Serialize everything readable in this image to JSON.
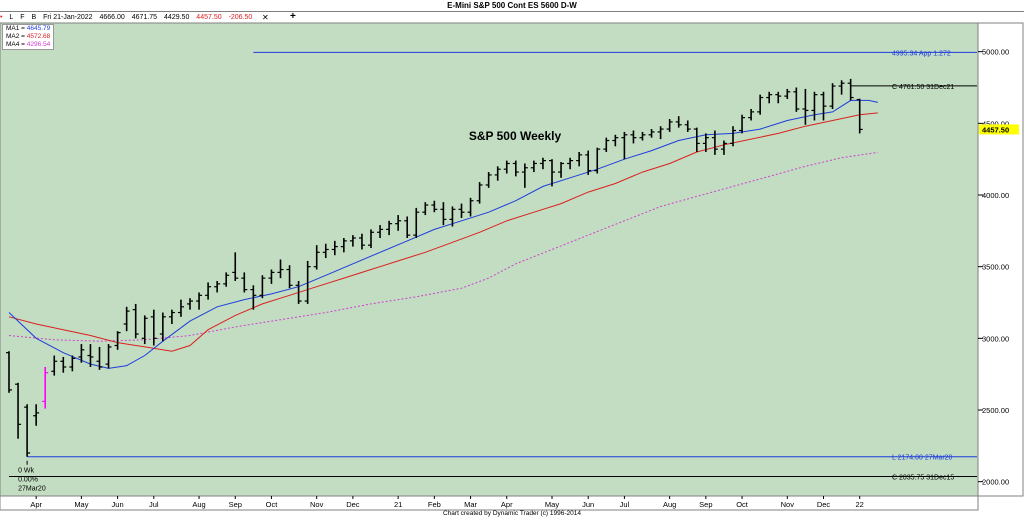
{
  "window": {
    "title": "E-Mini S&P 500 Cont ES 5600 D-W",
    "footer": "Chart created by Dynamic Trader  (c) 1996-2014",
    "crosshair_symbol": "+",
    "close_symbol": "✕"
  },
  "info_bar": {
    "toolbar_glyphs": [
      "•",
      "L",
      "F",
      "B"
    ],
    "date": "Fri 21-Jan-2022",
    "open": "4666.00",
    "high": "4671.75",
    "low": "4429.50",
    "close": "4457.50",
    "change": "-206.50"
  },
  "moving_averages": [
    {
      "label": "MA1 =",
      "value": "4645.79",
      "color": "#1e3cdc"
    },
    {
      "label": "MA2 =",
      "value": "4572.68",
      "color": "#dc2020"
    },
    {
      "label": "MA4 =",
      "value": "4296.54",
      "color": "#d040d0"
    }
  ],
  "colors": {
    "background": "#c2ddc2",
    "bars": "#000000",
    "ma1": "#1e3cdc",
    "ma2": "#dc2020",
    "ma4": "#d040d0",
    "projection": "#1e3cdc",
    "highlight_bar": "#ff00ff",
    "price_box": "#ffff00"
  },
  "chart_data": {
    "type": "ohlc",
    "title": "S&P 500 Weekly",
    "ylim": [
      1900,
      5200
    ],
    "y_ticks": [
      2000,
      2500,
      3000,
      3500,
      4000,
      4500,
      5000
    ],
    "y_tick_labels": [
      "2000.00",
      "2500.00",
      "3000.00",
      "3500.00",
      "4000.00",
      "4500.00",
      "5000.00"
    ],
    "current_price": "4457.50",
    "x_labels": [
      {
        "label": "Apr",
        "week": 3
      },
      {
        "label": "May",
        "week": 8
      },
      {
        "label": "Jun",
        "week": 12
      },
      {
        "label": "Jul",
        "week": 16
      },
      {
        "label": "Aug",
        "week": 21
      },
      {
        "label": "Sep",
        "week": 25
      },
      {
        "label": "Oct",
        "week": 29
      },
      {
        "label": "Nov",
        "week": 34
      },
      {
        "label": "Dec",
        "week": 38
      },
      {
        "label": "21",
        "week": 43
      },
      {
        "label": "Feb",
        "week": 47
      },
      {
        "label": "Mar",
        "week": 51
      },
      {
        "label": "Apr",
        "week": 55
      },
      {
        "label": "May",
        "week": 60
      },
      {
        "label": "Jun",
        "week": 64
      },
      {
        "label": "Jul",
        "week": 68
      },
      {
        "label": "Aug",
        "week": 73
      },
      {
        "label": "Sep",
        "week": 77
      },
      {
        "label": "Oct",
        "week": 81
      },
      {
        "label": "Nov",
        "week": 86
      },
      {
        "label": "Dec",
        "week": 90
      },
      {
        "label": "22",
        "week": 94
      }
    ],
    "levels": [
      {
        "value": 4995.34,
        "text": "4995.34 App 1.272",
        "start_week": 27,
        "color": "#1e3cdc"
      },
      {
        "value": 4761.5,
        "text": "C 4761.50 31Dec21",
        "start_week": 93,
        "color": "#000000"
      },
      {
        "value": 2174.0,
        "text": "L 2174.00 27Mar20",
        "start_week": 2,
        "color": "#1e3cdc"
      },
      {
        "value": 2035.75,
        "text": "C 2035.75 31Dec15",
        "start_week": 0,
        "color": "#000000"
      }
    ],
    "low_annotation": {
      "week": 2,
      "lines": [
        "0 Wk",
        "0.00%",
        "27Mar20"
      ]
    },
    "highlight_week": 4,
    "bars": [
      [
        2900,
        2910,
        2620,
        2640
      ],
      [
        2680,
        2690,
        2300,
        2400
      ],
      [
        2520,
        2540,
        2174,
        2200
      ],
      [
        2460,
        2540,
        2390,
        2480
      ],
      [
        2560,
        2800,
        2510,
        2760
      ],
      [
        2770,
        2880,
        2740,
        2840
      ],
      [
        2840,
        2870,
        2760,
        2800
      ],
      [
        2800,
        2880,
        2770,
        2860
      ],
      [
        2870,
        2960,
        2830,
        2920
      ],
      [
        2880,
        2960,
        2800,
        2870
      ],
      [
        2840,
        2940,
        2780,
        2800
      ],
      [
        2820,
        2960,
        2790,
        2940
      ],
      [
        2950,
        3050,
        2920,
        3040
      ],
      [
        3100,
        3220,
        3050,
        3190
      ],
      [
        3200,
        3240,
        3000,
        3030
      ],
      [
        3000,
        3160,
        2960,
        3140
      ],
      [
        3150,
        3200,
        2950,
        3000
      ],
      [
        3030,
        3180,
        2980,
        3150
      ],
      [
        3150,
        3200,
        3100,
        3180
      ],
      [
        3180,
        3270,
        3150,
        3220
      ],
      [
        3240,
        3280,
        3200,
        3260
      ],
      [
        3260,
        3320,
        3200,
        3300
      ],
      [
        3300,
        3390,
        3270,
        3360
      ],
      [
        3360,
        3400,
        3320,
        3380
      ],
      [
        3380,
        3460,
        3360,
        3440
      ],
      [
        3460,
        3600,
        3400,
        3420
      ],
      [
        3420,
        3460,
        3320,
        3340
      ],
      [
        3340,
        3370,
        3200,
        3300
      ],
      [
        3300,
        3440,
        3280,
        3420
      ],
      [
        3420,
        3480,
        3380,
        3460
      ],
      [
        3460,
        3550,
        3420,
        3480
      ],
      [
        3480,
        3510,
        3350,
        3370
      ],
      [
        3370,
        3400,
        3240,
        3260
      ],
      [
        3260,
        3540,
        3240,
        3500
      ],
      [
        3500,
        3650,
        3480,
        3600
      ],
      [
        3600,
        3660,
        3560,
        3620
      ],
      [
        3620,
        3680,
        3580,
        3640
      ],
      [
        3640,
        3700,
        3600,
        3680
      ],
      [
        3680,
        3720,
        3640,
        3700
      ],
      [
        3700,
        3730,
        3620,
        3650
      ],
      [
        3650,
        3760,
        3630,
        3740
      ],
      [
        3740,
        3790,
        3700,
        3760
      ],
      [
        3760,
        3820,
        3720,
        3800
      ],
      [
        3800,
        3860,
        3750,
        3820
      ],
      [
        3820,
        3850,
        3700,
        3720
      ],
      [
        3720,
        3910,
        3700,
        3880
      ],
      [
        3880,
        3950,
        3860,
        3930
      ],
      [
        3930,
        3960,
        3880,
        3900
      ],
      [
        3900,
        3950,
        3790,
        3830
      ],
      [
        3830,
        3920,
        3780,
        3900
      ],
      [
        3900,
        3940,
        3840,
        3880
      ],
      [
        3880,
        3980,
        3850,
        3960
      ],
      [
        3960,
        4090,
        3940,
        4070
      ],
      [
        4070,
        4160,
        4050,
        4140
      ],
      [
        4140,
        4200,
        4100,
        4180
      ],
      [
        4180,
        4240,
        4150,
        4220
      ],
      [
        4220,
        4240,
        4130,
        4160
      ],
      [
        4160,
        4220,
        4050,
        4190
      ],
      [
        4190,
        4240,
        4160,
        4220
      ],
      [
        4220,
        4260,
        4180,
        4240
      ],
      [
        4240,
        4250,
        4060,
        4160
      ],
      [
        4160,
        4230,
        4120,
        4220
      ],
      [
        4220,
        4260,
        4180,
        4240
      ],
      [
        4240,
        4300,
        4200,
        4280
      ],
      [
        4280,
        4310,
        4140,
        4170
      ],
      [
        4170,
        4330,
        4150,
        4320
      ],
      [
        4320,
        4400,
        4300,
        4380
      ],
      [
        4380,
        4420,
        4340,
        4400
      ],
      [
        4400,
        4440,
        4250,
        4420
      ],
      [
        4420,
        4450,
        4360,
        4400
      ],
      [
        4400,
        4440,
        4380,
        4420
      ],
      [
        4420,
        4460,
        4400,
        4440
      ],
      [
        4440,
        4480,
        4390,
        4460
      ],
      [
        4460,
        4530,
        4440,
        4510
      ],
      [
        4510,
        4550,
        4470,
        4490
      ],
      [
        4490,
        4520,
        4440,
        4460
      ],
      [
        4460,
        4470,
        4300,
        4360
      ],
      [
        4360,
        4430,
        4300,
        4400
      ],
      [
        4400,
        4450,
        4280,
        4320
      ],
      [
        4320,
        4380,
        4280,
        4360
      ],
      [
        4360,
        4480,
        4340,
        4450
      ],
      [
        4450,
        4560,
        4430,
        4540
      ],
      [
        4540,
        4600,
        4520,
        4580
      ],
      [
        4580,
        4700,
        4560,
        4680
      ],
      [
        4680,
        4720,
        4640,
        4700
      ],
      [
        4700,
        4720,
        4640,
        4690
      ],
      [
        4690,
        4740,
        4670,
        4720
      ],
      [
        4720,
        4750,
        4580,
        4600
      ],
      [
        4600,
        4740,
        4490,
        4590
      ],
      [
        4590,
        4720,
        4520,
        4700
      ],
      [
        4700,
        4720,
        4520,
        4620
      ],
      [
        4620,
        4780,
        4600,
        4760
      ],
      [
        4760,
        4800,
        4700,
        4780
      ],
      [
        4780,
        4810,
        4660,
        4680
      ],
      [
        4666,
        4671.75,
        4429.5,
        4457.5
      ]
    ],
    "ma1": [
      [
        0,
        3180
      ],
      [
        3,
        3000
      ],
      [
        6,
        2900
      ],
      [
        9,
        2820
      ],
      [
        11,
        2790
      ],
      [
        13,
        2810
      ],
      [
        15,
        2880
      ],
      [
        17,
        2980
      ],
      [
        20,
        3120
      ],
      [
        23,
        3220
      ],
      [
        26,
        3270
      ],
      [
        29,
        3310
      ],
      [
        32,
        3360
      ],
      [
        35,
        3440
      ],
      [
        38,
        3520
      ],
      [
        41,
        3600
      ],
      [
        44,
        3680
      ],
      [
        47,
        3760
      ],
      [
        50,
        3820
      ],
      [
        53,
        3880
      ],
      [
        56,
        3960
      ],
      [
        59,
        4060
      ],
      [
        62,
        4120
      ],
      [
        65,
        4180
      ],
      [
        68,
        4250
      ],
      [
        71,
        4310
      ],
      [
        74,
        4380
      ],
      [
        77,
        4420
      ],
      [
        80,
        4430
      ],
      [
        83,
        4460
      ],
      [
        86,
        4520
      ],
      [
        89,
        4560
      ],
      [
        91,
        4580
      ],
      [
        93,
        4660
      ],
      [
        95,
        4660
      ],
      [
        96,
        4646
      ]
    ],
    "ma2": [
      [
        0,
        3150
      ],
      [
        3,
        3100
      ],
      [
        6,
        3060
      ],
      [
        9,
        3020
      ],
      [
        12,
        2970
      ],
      [
        15,
        2940
      ],
      [
        18,
        2910
      ],
      [
        20,
        2950
      ],
      [
        22,
        3060
      ],
      [
        25,
        3160
      ],
      [
        28,
        3240
      ],
      [
        31,
        3300
      ],
      [
        34,
        3360
      ],
      [
        37,
        3420
      ],
      [
        40,
        3480
      ],
      [
        43,
        3540
      ],
      [
        46,
        3600
      ],
      [
        49,
        3670
      ],
      [
        52,
        3740
      ],
      [
        55,
        3820
      ],
      [
        58,
        3880
      ],
      [
        61,
        3940
      ],
      [
        64,
        4020
      ],
      [
        67,
        4080
      ],
      [
        70,
        4160
      ],
      [
        73,
        4220
      ],
      [
        76,
        4300
      ],
      [
        79,
        4350
      ],
      [
        82,
        4390
      ],
      [
        85,
        4430
      ],
      [
        88,
        4480
      ],
      [
        91,
        4520
      ],
      [
        94,
        4560
      ],
      [
        96,
        4573
      ]
    ],
    "ma4": [
      [
        0,
        3020
      ],
      [
        5,
        2990
      ],
      [
        10,
        2980
      ],
      [
        15,
        2990
      ],
      [
        20,
        3020
      ],
      [
        25,
        3080
      ],
      [
        30,
        3130
      ],
      [
        35,
        3180
      ],
      [
        40,
        3240
      ],
      [
        45,
        3290
      ],
      [
        50,
        3350
      ],
      [
        53,
        3420
      ],
      [
        56,
        3520
      ],
      [
        60,
        3620
      ],
      [
        64,
        3720
      ],
      [
        68,
        3820
      ],
      [
        72,
        3920
      ],
      [
        76,
        3990
      ],
      [
        80,
        4060
      ],
      [
        84,
        4130
      ],
      [
        88,
        4200
      ],
      [
        92,
        4260
      ],
      [
        96,
        4297
      ]
    ]
  }
}
